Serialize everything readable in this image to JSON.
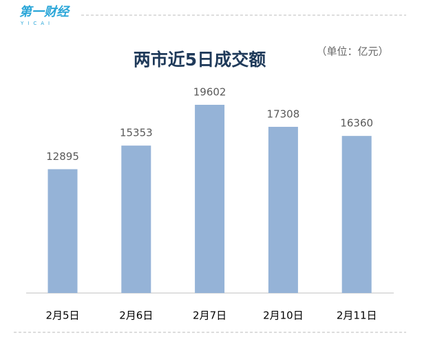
{
  "logo": {
    "name": "第一财经",
    "sub": "YICAI"
  },
  "unit": "（单位：亿元）",
  "chart_data": {
    "type": "bar",
    "title": "两市近5日成交额",
    "categories": [
      "2月5日",
      "2月6日",
      "2月7日",
      "2月10日",
      "2月11日"
    ],
    "values": [
      12895,
      15353,
      19602,
      17308,
      16360
    ],
    "color": "#95b3d7"
  }
}
